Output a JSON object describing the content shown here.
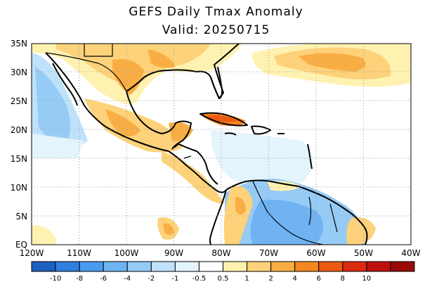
{
  "title": "GEFS Daily Tmax Anomaly",
  "subtitle": "Valid: 20250715",
  "map": {
    "lon_range": [
      -120,
      -40
    ],
    "lat_range": [
      0,
      35
    ],
    "lat_ticks": [
      "35N",
      "30N",
      "25N",
      "20N",
      "15N",
      "10N",
      "5N",
      "EQ"
    ],
    "lon_ticks": [
      "120W",
      "110W",
      "100W",
      "90W",
      "80W",
      "70W",
      "60W",
      "50W",
      "40W"
    ],
    "grid": "dotted"
  },
  "colorbar": {
    "colors": [
      "#1f5fbf",
      "#2f7fe0",
      "#4a9bef",
      "#6fb3f3",
      "#96cbf6",
      "#bfe2fa",
      "#e3f4fd",
      "#ffffff",
      "#fff2b0",
      "#fdd27a",
      "#f9ae45",
      "#f5861f",
      "#ec5a12",
      "#dc2a10",
      "#bf1010",
      "#9a0808"
    ],
    "labels": [
      "-10",
      "-8",
      "-6",
      "-4",
      "-2",
      "-1",
      "-0.5",
      "0.5",
      "1",
      "2",
      "4",
      "6",
      "8",
      "10"
    ]
  }
}
